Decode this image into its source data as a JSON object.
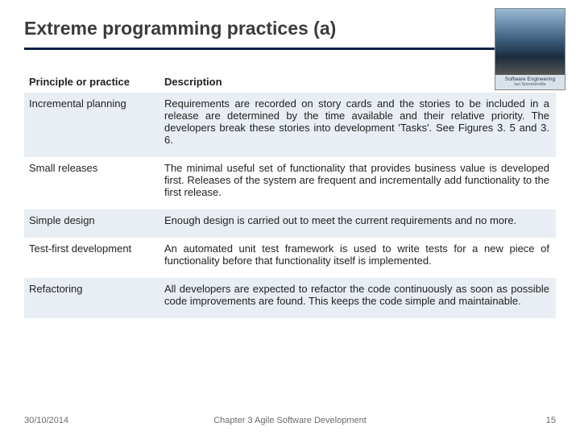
{
  "title": "Extreme programming practices (a)",
  "logo": {
    "line1": "Software Engineering",
    "line2": "Ian Sommerville"
  },
  "table": {
    "headers": {
      "col1": "Principle or practice",
      "col2": "Description"
    },
    "rows": [
      {
        "principle": "Incremental planning",
        "description": "Requirements are recorded on story cards and the stories to be included in a release are determined by the time available and their relative priority. The developers break these stories into development 'Tasks'. See Figures 3. 5 and 3. 6.",
        "alt": true
      },
      {
        "principle": "Small releases",
        "description": "The minimal useful set of functionality that provides business value is developed first. Releases of the system are frequent and incrementally add functionality to the first release.",
        "alt": false
      },
      {
        "principle": "Simple design",
        "description": "Enough design is carried out to meet the current requirements and no more.",
        "alt": true
      },
      {
        "principle": "Test-first development",
        "description": "An automated unit test framework is used to write tests for a new piece of functionality before that functionality itself is implemented.",
        "alt": false
      },
      {
        "principle": "Refactoring",
        "description": "All developers are expected to refactor the code continuously as soon as possible code improvements are found. This keeps the code simple and maintainable.",
        "alt": true
      }
    ]
  },
  "footer": {
    "date": "30/10/2014",
    "center": "Chapter 3 Agile Software Development",
    "page": "15"
  },
  "colors": {
    "rule": "#0a1f44",
    "alt_row_bg": "#e8eef3",
    "title_color": "#3b3b3b",
    "footer_color": "#6b6b6b"
  }
}
